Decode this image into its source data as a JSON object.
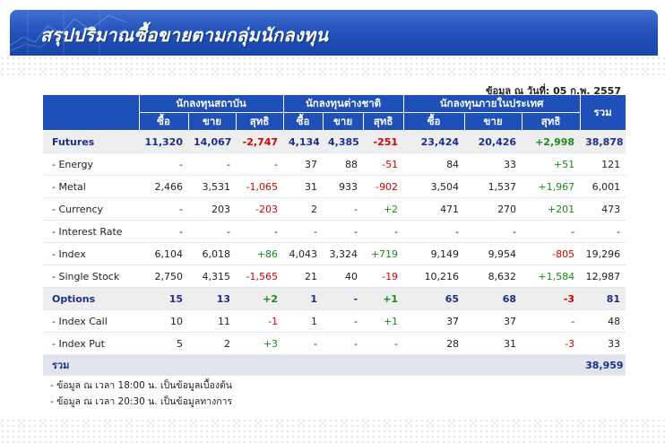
{
  "header": {
    "title": "สรุปปริมาณซื้อขายตามกลุ่มนักลงทุน"
  },
  "as_of": "ข้อมูล ณ วันที่: 05 ก.พ. 2557",
  "columns": {
    "group_institution": "นักลงทุนสถาบัน",
    "group_foreign": "นักลงทุนต่างชาติ",
    "group_local": "นักลงทุนภายในประเทศ",
    "total": "รวม",
    "buy": "ซื้อ",
    "sell": "ขาย",
    "net": "สุทธิ"
  },
  "rows": [
    {
      "label": "Futures",
      "kind": "sum",
      "values": [
        "11,320",
        "14,067",
        "-2,747",
        "4,134",
        "4,385",
        "-251",
        "23,424",
        "20,426",
        "+2,998",
        "38,878"
      ]
    },
    {
      "label": " - Energy",
      "kind": "item",
      "values": [
        "-",
        "-",
        "-",
        "37",
        "88",
        "-51",
        "84",
        "33",
        "+51",
        "121"
      ]
    },
    {
      "label": " - Metal",
      "kind": "item",
      "values": [
        "2,466",
        "3,531",
        "-1,065",
        "31",
        "933",
        "-902",
        "3,504",
        "1,537",
        "+1,967",
        "6,001"
      ]
    },
    {
      "label": " - Currency",
      "kind": "item",
      "values": [
        "-",
        "203",
        "-203",
        "2",
        "-",
        "+2",
        "471",
        "270",
        "+201",
        "473"
      ]
    },
    {
      "label": " - Interest Rate",
      "kind": "item",
      "values": [
        "-",
        "-",
        "-",
        "-",
        "-",
        "-",
        "-",
        "-",
        "-",
        "-"
      ]
    },
    {
      "label": " - Index",
      "kind": "item",
      "values": [
        "6,104",
        "6,018",
        "+86",
        "4,043",
        "3,324",
        "+719",
        "9,149",
        "9,954",
        "-805",
        "19,296"
      ]
    },
    {
      "label": " - Single Stock",
      "kind": "item",
      "values": [
        "2,750",
        "4,315",
        "-1,565",
        "21",
        "40",
        "-19",
        "10,216",
        "8,632",
        "+1,584",
        "12,987"
      ]
    },
    {
      "label": "Options",
      "kind": "sum",
      "values": [
        "15",
        "13",
        "+2",
        "1",
        "-",
        "+1",
        "65",
        "68",
        "-3",
        "81"
      ]
    },
    {
      "label": " - Index Call",
      "kind": "item",
      "values": [
        "10",
        "11",
        "-1",
        "1",
        "-",
        "+1",
        "37",
        "37",
        "-",
        "48"
      ]
    },
    {
      "label": " - Index Put",
      "kind": "item",
      "values": [
        "5",
        "2",
        "+3",
        "-",
        "-",
        "-",
        "28",
        "31",
        "-3",
        "33"
      ]
    }
  ],
  "total_row": {
    "label": "รวม",
    "value": "38,959"
  },
  "notes": [
    "- ข้อมูล ณ เวลา 18:00 น. เป็นข้อมูลเบื้องต้น",
    "- ข้อมูล ณ เวลา 20:30 น. เป็นข้อมูลทางการ"
  ],
  "colors": {
    "header_blue": "#1f4fb8",
    "negative": "#d60000",
    "positive": "#1a8a1a",
    "summary_text": "#1c2f8f"
  }
}
